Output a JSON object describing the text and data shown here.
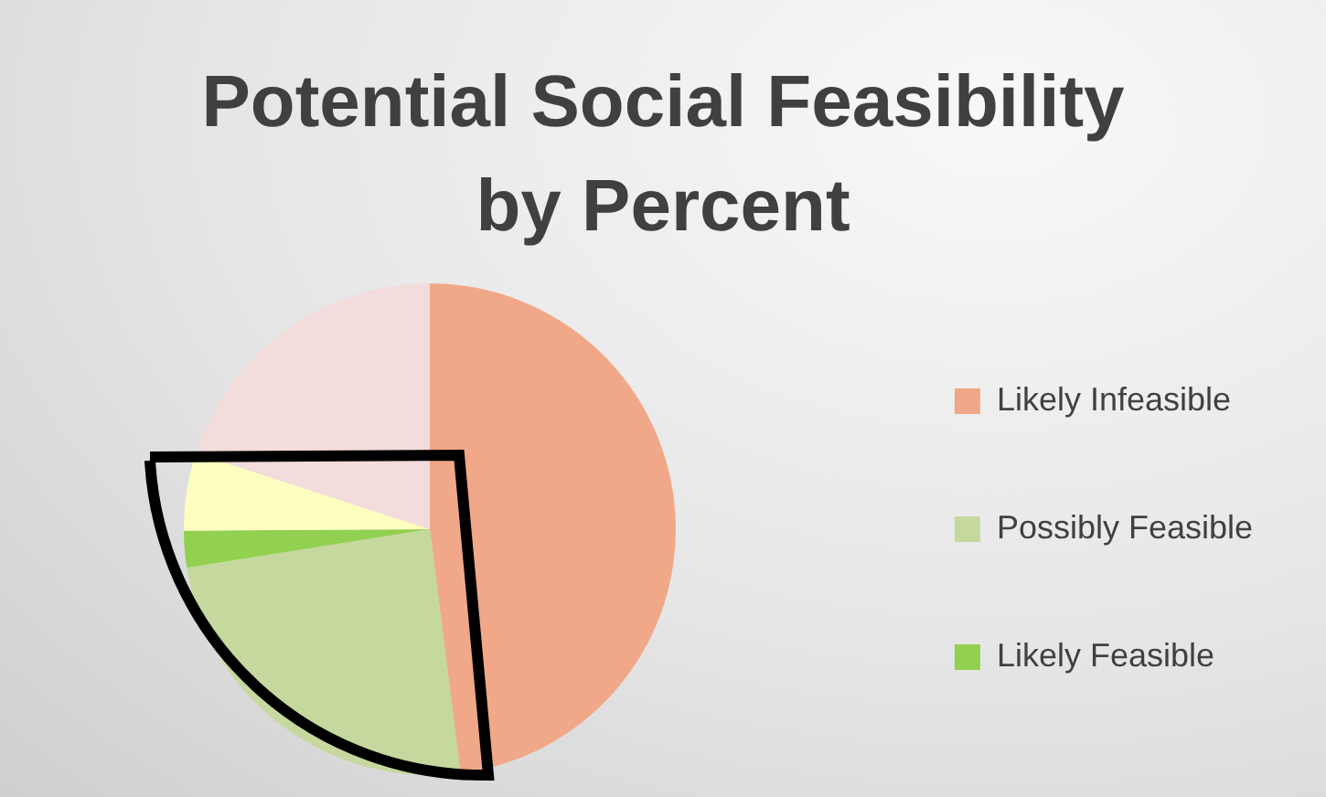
{
  "chart_data": {
    "type": "pie",
    "title": "Potential Social Feasibility by Percent",
    "categories": [
      "Likely Infeasible",
      "Possibly Feasible",
      "Likely Feasible",
      null,
      null
    ],
    "values": [
      48,
      24.5,
      2.4,
      5.1,
      20
    ],
    "colors": [
      "#f0a888",
      "#c5d89e",
      "#92d050",
      "#fdffc0",
      "#f3dcdc"
    ],
    "legend": "right"
  }
}
